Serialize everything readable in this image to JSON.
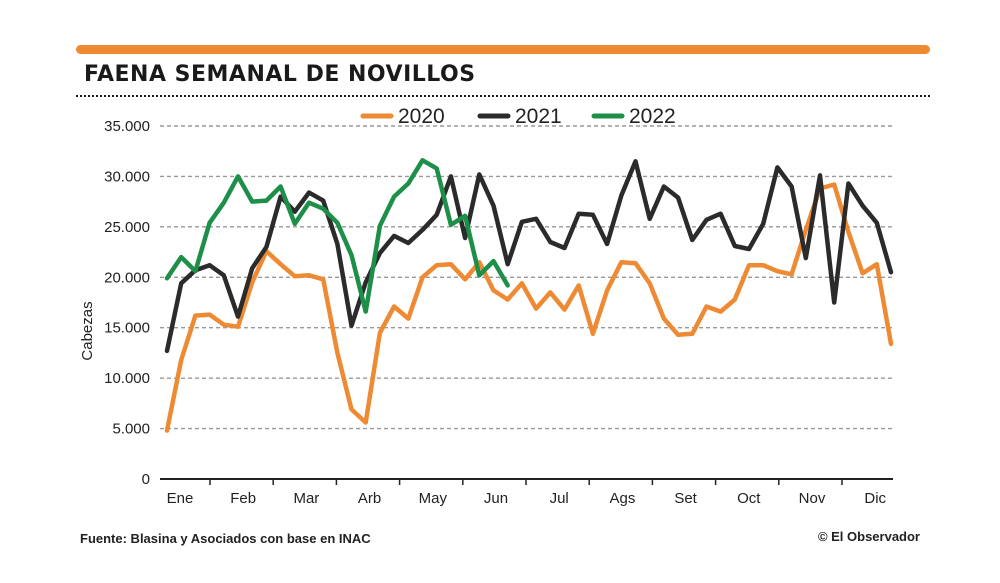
{
  "header": {
    "title": "FAENA SEMANAL DE NOVILLOS"
  },
  "footer": {
    "source": "Fuente: Blasina y Asociados con base en INAC",
    "credit": "© El Observador"
  },
  "colors": {
    "accent": "#ee8a33",
    "s2020": "#ee8a33",
    "s2021": "#2b2b2b",
    "s2022": "#1e8f48",
    "grid": "#999999"
  },
  "chart_data": {
    "type": "line",
    "title": "FAENA SEMANAL DE NOVILLOS",
    "xlabel": "",
    "ylabel": "Cabezas",
    "ylim": [
      0,
      35000
    ],
    "yticks": [
      0,
      5000,
      10000,
      15000,
      20000,
      25000,
      30000,
      35000
    ],
    "ytick_labels": [
      "0",
      "5.000",
      "10.000",
      "15.000",
      "20.000",
      "25.000",
      "30.000",
      "35.000"
    ],
    "months": [
      "Ene",
      "Feb",
      "Mar",
      "Arb",
      "May",
      "Jun",
      "Jul",
      "Ags",
      "Set",
      "Oct",
      "Nov",
      "Dic"
    ],
    "grid": true,
    "legend_position": "top-center",
    "series": [
      {
        "name": "2020",
        "color": "#ee8a33",
        "values": [
          4800,
          11800,
          16200,
          16300,
          15300,
          15100,
          19500,
          22600,
          21300,
          20100,
          20200,
          19800,
          12500,
          6900,
          5600,
          14500,
          17100,
          15900,
          20000,
          21200,
          21300,
          19800,
          21500,
          18700,
          17800,
          19400,
          16900,
          18500,
          16800,
          19200,
          14400,
          18700,
          21500,
          21400,
          19400,
          15900,
          14300,
          14400,
          17100,
          16600,
          17800,
          21200,
          21200,
          20600,
          20300,
          24700,
          28800,
          29200,
          24500,
          20400,
          21300,
          13400
        ]
      },
      {
        "name": "2021",
        "color": "#2b2b2b",
        "values": [
          12700,
          19400,
          20700,
          21200,
          20200,
          16100,
          20900,
          23000,
          28000,
          26500,
          28400,
          27600,
          23300,
          15200,
          19500,
          22400,
          24100,
          23400,
          24700,
          26200,
          30000,
          23900,
          30200,
          27100,
          21300,
          25500,
          25800,
          23500,
          22900,
          26300,
          26200,
          23300,
          28100,
          31500,
          25800,
          29000,
          27900,
          23700,
          25700,
          26300,
          23100,
          22800,
          25300,
          30900,
          29000,
          21900,
          30100,
          17500,
          29300,
          27100,
          25400,
          20500
        ]
      },
      {
        "name": "2022",
        "color": "#1e8f48",
        "values": [
          19900,
          22000,
          20600,
          25400,
          27400,
          30000,
          27500,
          27600,
          29000,
          25300,
          27400,
          26800,
          25400,
          22200,
          16600,
          25100,
          28000,
          29300,
          31600,
          30800,
          25200,
          26100,
          20200,
          21600,
          19200
        ]
      }
    ]
  }
}
